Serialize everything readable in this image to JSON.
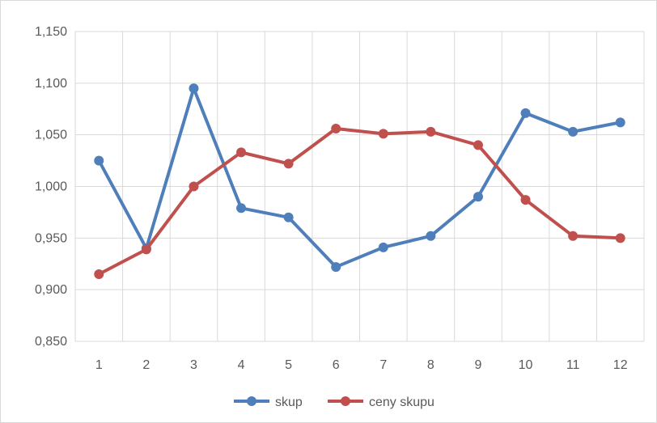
{
  "chart_data": {
    "type": "line",
    "title": "",
    "xlabel": "",
    "ylabel": "",
    "categories": [
      "1",
      "2",
      "3",
      "4",
      "5",
      "6",
      "7",
      "8",
      "9",
      "10",
      "11",
      "12"
    ],
    "ylim": [
      0.85,
      1.15
    ],
    "yticks": [
      "0,850",
      "0,900",
      "0,950",
      "1,000",
      "1,050",
      "1,100",
      "1,150"
    ],
    "ytick_values": [
      0.85,
      0.9,
      0.95,
      1.0,
      1.05,
      1.1,
      1.15
    ],
    "grid": true,
    "legend_position": "bottom",
    "series": [
      {
        "name": "skup",
        "color": "#4f7fba",
        "values": [
          1.025,
          0.94,
          1.095,
          0.979,
          0.97,
          0.922,
          0.941,
          0.952,
          0.99,
          1.071,
          1.053,
          1.062
        ]
      },
      {
        "name": "ceny skupu",
        "color": "#c0504d",
        "values": [
          0.915,
          0.939,
          1.0,
          1.033,
          1.022,
          1.056,
          1.051,
          1.053,
          1.04,
          0.987,
          0.952,
          0.95
        ]
      }
    ]
  }
}
